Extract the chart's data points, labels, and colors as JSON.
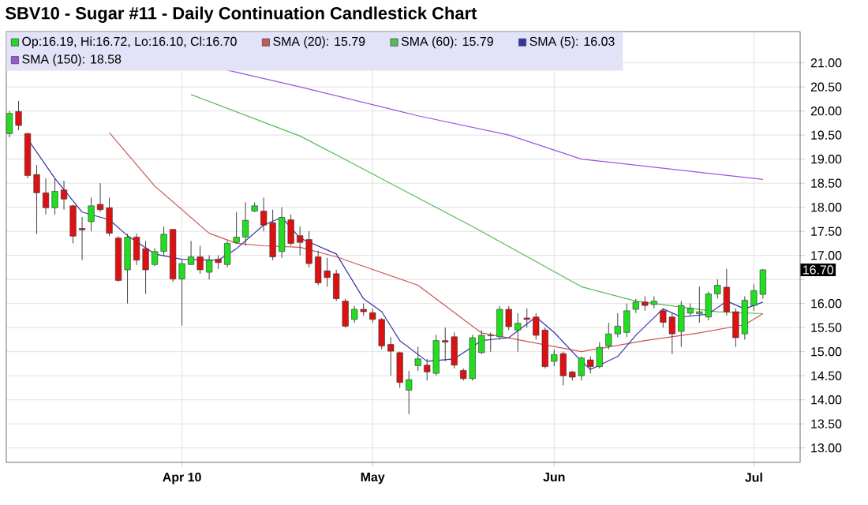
{
  "chart_data": {
    "type": "candlestick",
    "title": "SBV10 - Sugar #11 - Daily Continuation Candlestick Chart",
    "categories": [
      null,
      null,
      null,
      null,
      null,
      null,
      null,
      null,
      null,
      null,
      null,
      null,
      null,
      null,
      null,
      null,
      null,
      null,
      null,
      "Apr 10",
      null,
      null,
      null,
      null,
      null,
      null,
      null,
      null,
      null,
      null,
      null,
      null,
      null,
      null,
      null,
      null,
      null,
      null,
      null,
      null,
      "May",
      null,
      null,
      null,
      null,
      null,
      null,
      null,
      null,
      null,
      null,
      null,
      null,
      null,
      null,
      null,
      null,
      null,
      null,
      null,
      "Jun",
      null,
      null,
      null,
      null,
      null,
      null,
      null,
      null,
      null,
      null,
      null,
      null,
      null,
      null,
      null,
      null,
      null,
      null,
      null,
      null,
      null,
      "Jul",
      null
    ],
    "ylim": [
      12.7,
      21.65
    ],
    "yticks": [
      {
        "value": 13,
        "label": "13.00"
      },
      {
        "value": 13.5,
        "label": "13.50"
      },
      {
        "value": 14,
        "label": "14.00"
      },
      {
        "value": 14.5,
        "label": "14.50"
      },
      {
        "value": 15,
        "label": "15.00"
      },
      {
        "value": 15.5,
        "label": "15.50"
      },
      {
        "value": 16,
        "label": "16.00"
      },
      {
        "value": 16.5,
        "label": null
      },
      {
        "value": 17,
        "label": "17.00"
      },
      {
        "value": 17.5,
        "label": "17.50"
      },
      {
        "value": 18,
        "label": "18.00"
      },
      {
        "value": 18.5,
        "label": "18.50"
      },
      {
        "value": 19,
        "label": "19.00"
      },
      {
        "value": 19.5,
        "label": "19.50"
      },
      {
        "value": 20,
        "label": "20.00"
      },
      {
        "value": 20.5,
        "label": "20.50"
      },
      {
        "value": 21,
        "label": "21.00"
      }
    ],
    "grid": true,
    "legend": "top",
    "annotations": [
      "16.70"
    ],
    "series": [
      {
        "name": "Op:16.19, Hi:16.72, Lo:16.10, Cl:16.70",
        "color": "#22dd22",
        "ohlc": [
          [
            19.53,
            20.0,
            19.45,
            19.95
          ],
          [
            19.99,
            20.21,
            19.6,
            19.7
          ],
          [
            19.53,
            19.55,
            18.6,
            18.66
          ],
          [
            18.68,
            18.88,
            17.44,
            18.3
          ],
          [
            18.3,
            18.6,
            17.85,
            17.99
          ],
          [
            17.99,
            18.6,
            17.85,
            18.33
          ],
          [
            18.36,
            18.55,
            17.95,
            18.17
          ],
          [
            18.03,
            18.05,
            17.25,
            17.4
          ],
          [
            17.56,
            17.8,
            16.9,
            17.53
          ],
          [
            17.7,
            18.2,
            17.5,
            18.03
          ],
          [
            18.06,
            18.5,
            17.9,
            17.95
          ],
          [
            17.99,
            18.2,
            17.4,
            17.46
          ],
          [
            17.36,
            17.4,
            16.45,
            16.48
          ],
          [
            16.7,
            17.45,
            16.0,
            17.38
          ],
          [
            17.38,
            17.45,
            16.8,
            16.9
          ],
          [
            17.14,
            17.3,
            16.2,
            16.7
          ],
          [
            16.81,
            17.15,
            16.78,
            17.08
          ],
          [
            17.08,
            17.6,
            17.0,
            17.44
          ],
          [
            17.54,
            17.55,
            16.45,
            16.51
          ],
          [
            16.51,
            16.9,
            15.54,
            16.83
          ],
          [
            16.81,
            17.3,
            16.8,
            16.97
          ],
          [
            16.97,
            17.2,
            16.62,
            16.7
          ],
          [
            16.65,
            17.0,
            16.5,
            16.9
          ],
          [
            16.92,
            17.0,
            16.72,
            16.85
          ],
          [
            16.81,
            17.3,
            16.75,
            17.25
          ],
          [
            17.27,
            17.9,
            17.25,
            17.38
          ],
          [
            17.38,
            18.1,
            17.2,
            17.73
          ],
          [
            17.92,
            18.1,
            17.9,
            18.03
          ],
          [
            17.92,
            18.2,
            17.5,
            17.63
          ],
          [
            17.68,
            17.95,
            16.9,
            16.97
          ],
          [
            17.08,
            18.0,
            16.95,
            17.79
          ],
          [
            17.74,
            17.85,
            17.2,
            17.25
          ],
          [
            17.41,
            17.6,
            17.0,
            17.27
          ],
          [
            17.33,
            17.5,
            16.75,
            16.83
          ],
          [
            16.97,
            17.1,
            16.38,
            16.43
          ],
          [
            16.68,
            16.95,
            16.35,
            16.54
          ],
          [
            16.62,
            16.7,
            16.05,
            16.1
          ],
          [
            16.05,
            16.1,
            15.5,
            15.53
          ],
          [
            15.67,
            15.95,
            15.6,
            15.88
          ],
          [
            15.88,
            16.0,
            15.75,
            15.83
          ],
          [
            15.81,
            15.9,
            15.6,
            15.67
          ],
          [
            15.67,
            15.7,
            15.05,
            15.12
          ],
          [
            15.15,
            15.3,
            14.5,
            15.01
          ],
          [
            14.98,
            15.0,
            14.25,
            14.36
          ],
          [
            14.2,
            14.6,
            13.7,
            14.42
          ],
          [
            14.71,
            15.1,
            14.6,
            14.85
          ],
          [
            14.72,
            14.85,
            14.4,
            14.58
          ],
          [
            14.55,
            15.35,
            14.5,
            15.23
          ],
          [
            15.23,
            15.5,
            14.8,
            15.2
          ],
          [
            15.31,
            15.4,
            14.65,
            14.72
          ],
          [
            14.61,
            14.65,
            14.4,
            14.44
          ],
          [
            14.44,
            15.35,
            14.4,
            15.29
          ],
          [
            14.98,
            15.45,
            14.95,
            15.34
          ],
          [
            15.33,
            15.4,
            15.0,
            15.34
          ],
          [
            15.31,
            15.95,
            15.25,
            15.88
          ],
          [
            15.88,
            15.95,
            15.45,
            15.52
          ],
          [
            15.45,
            15.8,
            15.0,
            15.59
          ],
          [
            15.7,
            15.9,
            15.5,
            15.67
          ],
          [
            15.72,
            15.8,
            15.25,
            15.34
          ],
          [
            15.45,
            15.5,
            14.65,
            14.69
          ],
          [
            14.8,
            15.05,
            14.7,
            14.94
          ],
          [
            14.96,
            15.0,
            14.3,
            14.5
          ],
          [
            14.58,
            14.6,
            14.4,
            14.47
          ],
          [
            14.5,
            14.9,
            14.4,
            14.87
          ],
          [
            14.83,
            14.9,
            14.55,
            14.69
          ],
          [
            14.69,
            15.2,
            14.65,
            15.09
          ],
          [
            15.12,
            15.6,
            15.05,
            15.37
          ],
          [
            15.37,
            15.8,
            15.3,
            15.53
          ],
          [
            15.4,
            16.0,
            15.3,
            15.85
          ],
          [
            15.88,
            16.1,
            15.8,
            16.03
          ],
          [
            16.03,
            16.15,
            15.85,
            15.96
          ],
          [
            15.98,
            16.15,
            15.9,
            16.05
          ],
          [
            15.85,
            15.9,
            15.5,
            15.61
          ],
          [
            15.72,
            15.8,
            14.95,
            15.37
          ],
          [
            15.42,
            16.05,
            15.1,
            15.96
          ],
          [
            15.8,
            16.0,
            15.75,
            15.9
          ],
          [
            15.79,
            16.35,
            15.6,
            15.83
          ],
          [
            15.72,
            16.25,
            15.65,
            16.2
          ],
          [
            16.2,
            16.5,
            16.1,
            16.38
          ],
          [
            16.34,
            16.72,
            15.75,
            15.83
          ],
          [
            15.83,
            15.9,
            15.1,
            15.29
          ],
          [
            15.37,
            16.15,
            15.25,
            16.07
          ],
          [
            15.96,
            16.4,
            15.85,
            16.27
          ],
          [
            16.19,
            16.72,
            16.1,
            16.7
          ]
        ],
        "colors": [
          "#22dd22",
          "#dd1111",
          "#dd1111",
          "#dd1111",
          "#dd1111",
          "#22dd22",
          "#dd1111",
          "#dd1111",
          "#dd1111",
          "#22dd22",
          "#dd1111",
          "#dd1111",
          "#dd1111",
          "#22dd22",
          "#dd1111",
          "#dd1111",
          "#22dd22",
          "#22dd22",
          "#dd1111",
          "#22dd22",
          "#22dd22",
          "#dd1111",
          "#22dd22",
          "#dd1111",
          "#22dd22",
          "#22dd22",
          "#22dd22",
          "#22dd22",
          "#dd1111",
          "#dd1111",
          "#22dd22",
          "#dd1111",
          "#dd1111",
          "#dd1111",
          "#dd1111",
          "#dd1111",
          "#dd1111",
          "#dd1111",
          "#22dd22",
          "#dd1111",
          "#dd1111",
          "#dd1111",
          "#dd1111",
          "#dd1111",
          "#22dd22",
          "#22dd22",
          "#dd1111",
          "#22dd22",
          "#dd1111",
          "#dd1111",
          "#dd1111",
          "#22dd22",
          "#22dd22",
          "#22dd22",
          "#22dd22",
          "#dd1111",
          "#22dd22",
          "#dd1111",
          "#dd1111",
          "#dd1111",
          "#22dd22",
          "#dd1111",
          "#dd1111",
          "#22dd22",
          "#dd1111",
          "#22dd22",
          "#22dd22",
          "#22dd22",
          "#22dd22",
          "#22dd22",
          "#dd1111",
          "#22dd22",
          "#dd1111",
          "#dd1111",
          "#22dd22",
          "#22dd22",
          "#22dd22",
          "#22dd22",
          "#22dd22",
          "#dd1111",
          "#dd1111",
          "#22dd22",
          "#22dd22",
          "#22dd22"
        ]
      },
      {
        "name": "SMA (20): 15.79",
        "type": "line",
        "color": "#cc5555",
        "values": [
          null,
          null,
          null,
          null,
          null,
          null,
          null,
          null,
          null,
          null,
          null,
          19.55,
          null,
          null,
          null,
          null,
          18.44,
          null,
          null,
          null,
          null,
          null,
          17.46,
          null,
          null,
          17.25,
          null,
          null,
          17.2,
          null,
          null,
          null,
          17.17,
          null,
          null,
          null,
          16.97,
          null,
          null,
          null,
          null,
          null,
          null,
          null,
          null,
          16.38,
          null,
          null,
          null,
          null,
          null,
          null,
          15.39,
          null,
          null,
          null,
          null,
          null,
          null,
          null,
          null,
          null,
          null,
          15.0,
          null,
          null,
          null,
          null,
          null,
          null,
          15.23,
          null,
          null,
          null,
          null,
          null,
          15.39,
          null,
          null,
          null,
          null,
          15.56,
          null,
          15.79
        ]
      },
      {
        "name": "SMA (60): 15.79",
        "type": "line",
        "color": "#55bb55",
        "values": [
          null,
          null,
          null,
          null,
          null,
          null,
          null,
          null,
          null,
          null,
          null,
          null,
          null,
          null,
          null,
          null,
          null,
          null,
          null,
          null,
          20.34,
          null,
          null,
          null,
          null,
          null,
          null,
          null,
          null,
          null,
          null,
          null,
          19.48,
          null,
          null,
          null,
          null,
          18.99,
          null,
          null,
          null,
          null,
          null,
          null,
          null,
          null,
          null,
          null,
          null,
          null,
          null,
          17.6,
          null,
          null,
          null,
          null,
          null,
          null,
          null,
          null,
          null,
          null,
          null,
          16.35,
          null,
          null,
          null,
          null,
          null,
          16.05,
          null,
          null,
          null,
          null,
          null,
          null,
          null,
          null,
          15.83,
          null,
          null,
          null,
          null,
          15.79
        ]
      },
      {
        "name": "SMA (5): 16.03",
        "type": "line",
        "color": "#3333aa",
        "values": [
          null,
          null,
          19.42,
          null,
          null,
          18.6,
          null,
          null,
          17.9,
          null,
          null,
          17.74,
          null,
          17.41,
          null,
          null,
          17.03,
          null,
          null,
          16.92,
          null,
          null,
          null,
          16.9,
          null,
          17.14,
          null,
          null,
          17.63,
          null,
          17.79,
          null,
          17.36,
          null,
          null,
          null,
          17.03,
          null,
          null,
          16.1,
          null,
          15.83,
          null,
          15.23,
          null,
          null,
          14.8,
          null,
          null,
          14.85,
          null,
          null,
          15.23,
          null,
          null,
          15.29,
          null,
          null,
          15.72,
          null,
          15.4,
          null,
          null,
          14.8,
          14.63,
          null,
          null,
          14.9,
          null,
          15.34,
          null,
          null,
          15.89,
          null,
          15.72,
          null,
          null,
          15.78,
          null,
          16.05,
          null,
          15.89,
          null,
          16.03
        ]
      },
      {
        "name": "SMA (150): 18.58",
        "type": "line",
        "color": "#9955dd",
        "values": [
          null,
          null,
          null,
          null,
          null,
          null,
          null,
          null,
          null,
          null,
          null,
          null,
          null,
          null,
          null,
          null,
          null,
          null,
          null,
          null,
          null,
          null,
          null,
          null,
          20.85,
          null,
          null,
          null,
          null,
          null,
          null,
          null,
          20.5,
          null,
          null,
          null,
          null,
          null,
          null,
          null,
          null,
          null,
          null,
          null,
          null,
          19.9,
          null,
          null,
          null,
          null,
          null,
          null,
          null,
          null,
          null,
          19.5,
          null,
          null,
          null,
          null,
          null,
          null,
          null,
          19.0,
          null,
          null,
          null,
          null,
          null,
          null,
          null,
          null,
          null,
          null,
          null,
          null,
          null,
          null,
          null,
          null,
          null,
          null,
          null,
          18.58
        ]
      }
    ]
  }
}
